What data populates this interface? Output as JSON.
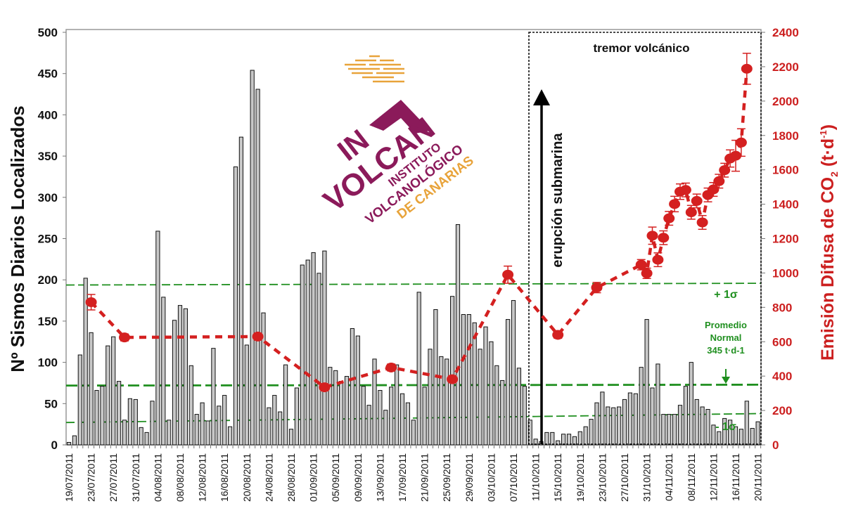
{
  "chart_data": {
    "type": "bar+line",
    "x_start_date": "19/07/2011",
    "x_tick_labels": [
      "19/07/2011",
      "23/07/2011",
      "27/07/2011",
      "31/07/2011",
      "04/08/2011",
      "08/08/2011",
      "12/08/2011",
      "16/08/2011",
      "20/08/2011",
      "24/08/2011",
      "28/08/2011",
      "01/09/2011",
      "05/09/2011",
      "09/09/2011",
      "13/09/2011",
      "17/09/2011",
      "21/09/2011",
      "25/09/2011",
      "29/09/2011",
      "03/10/2011",
      "07/10/2011",
      "11/10/2011",
      "15/10/2011",
      "19/10/2011",
      "23/10/2011",
      "27/10/2011",
      "31/10/2011",
      "04/11/2011",
      "08/11/2011",
      "12/11/2011",
      "16/11/2011",
      "20/11/2011"
    ],
    "ylabel": "Nº Sismos Diarios Localizados",
    "ylim": [
      0,
      500
    ],
    "y_ticks": [
      "0",
      "50",
      "100",
      "150",
      "200",
      "250",
      "300",
      "350",
      "400",
      "450",
      "500"
    ],
    "y2label": {
      "main": "Emisión Difusa de CO",
      "sub": "2",
      "unit_open": " (t·d",
      "sup": "-1",
      "unit_close": ")"
    },
    "y2lim": [
      0,
      2400
    ],
    "y2_ticks": [
      "0",
      "200",
      "400",
      "600",
      "800",
      "1000",
      "1200",
      "1400",
      "1600",
      "1800",
      "2000",
      "2200",
      "2400"
    ],
    "bar_series": {
      "name": "Sismos diarios localizados",
      "values": [
        3,
        11,
        109,
        202,
        136,
        66,
        71,
        120,
        131,
        77,
        30,
        56,
        55,
        21,
        15,
        53,
        259,
        179,
        30,
        151,
        169,
        165,
        96,
        37,
        51,
        29,
        117,
        47,
        60,
        22,
        337,
        373,
        121,
        454,
        431,
        160,
        45,
        60,
        40,
        97,
        19,
        69,
        218,
        224,
        233,
        208,
        235,
        94,
        90,
        77,
        83,
        141,
        132,
        71,
        48,
        104,
        66,
        42,
        70,
        97,
        62,
        51,
        30,
        185,
        70,
        116,
        164,
        107,
        104,
        180,
        267,
        158,
        158,
        148,
        116,
        143,
        125,
        96,
        78,
        152,
        175,
        93,
        71,
        30,
        7,
        4,
        15,
        15,
        5,
        13,
        13,
        10,
        16,
        22,
        31,
        51,
        64,
        46,
        45,
        46,
        55,
        63,
        62,
        94,
        152,
        69,
        98,
        37,
        37,
        37,
        48,
        71,
        100,
        55,
        46,
        43,
        24,
        16,
        32,
        30,
        22,
        19,
        53,
        20,
        28
      ]
    },
    "co2_series": {
      "name": "Emisión difusa de CO2 (t·d-1)",
      "points": [
        {
          "date": "23/07/2011",
          "value": 830,
          "err": 45
        },
        {
          "date": "29/07/2011",
          "value": 625,
          "err": 20
        },
        {
          "date": "22/08/2011",
          "value": 630,
          "err": 20
        },
        {
          "date": "03/09/2011",
          "value": 335,
          "err": 20
        },
        {
          "date": "15/09/2011",
          "value": 450,
          "err": 20
        },
        {
          "date": "26/09/2011",
          "value": 382,
          "err": 20
        },
        {
          "date": "06/10/2011",
          "value": 990,
          "err": 50
        },
        {
          "date": "15/10/2011",
          "value": 640,
          "err": 20
        },
        {
          "date": "22/10/2011",
          "value": 915,
          "err": 30
        },
        {
          "date": "30/10/2011",
          "value": 1048,
          "err": 30
        },
        {
          "date": "31/10/2011",
          "value": 998,
          "err": 30
        },
        {
          "date": "01/11/2011",
          "value": 1217,
          "err": 50
        },
        {
          "date": "02/11/2011",
          "value": 1077,
          "err": 40
        },
        {
          "date": "03/11/2011",
          "value": 1205,
          "err": 40
        },
        {
          "date": "04/11/2011",
          "value": 1318,
          "err": 40
        },
        {
          "date": "05/11/2011",
          "value": 1401,
          "err": 45
        },
        {
          "date": "06/11/2011",
          "value": 1473,
          "err": 45
        },
        {
          "date": "07/11/2011",
          "value": 1483,
          "err": 40
        },
        {
          "date": "08/11/2011",
          "value": 1353,
          "err": 40
        },
        {
          "date": "09/11/2011",
          "value": 1419,
          "err": 40
        },
        {
          "date": "10/11/2011",
          "value": 1294,
          "err": 40
        },
        {
          "date": "11/11/2011",
          "value": 1454,
          "err": 40
        },
        {
          "date": "12/11/2011",
          "value": 1486,
          "err": 40
        },
        {
          "date": "13/11/2011",
          "value": 1534,
          "err": 40
        },
        {
          "date": "14/11/2011",
          "value": 1598,
          "err": 40
        },
        {
          "date": "15/11/2011",
          "value": 1666,
          "err": 50
        },
        {
          "date": "16/11/2011",
          "value": 1682,
          "err": 90
        },
        {
          "date": "17/11/2011",
          "value": 1759,
          "err": 80
        },
        {
          "date": "18/11/2011",
          "value": 2188,
          "err": 90
        }
      ]
    },
    "reference_lines": [
      {
        "name": "plus-1-sigma",
        "label": "+ 1σ",
        "value_start": 930,
        "value_end": 940
      },
      {
        "name": "mean",
        "label": "Promedio Normal 345 t·d-1",
        "value_start": 345,
        "value_end": 350
      },
      {
        "name": "minus-1-sigma",
        "label": "- 1σ",
        "value_start": 130,
        "value_end": 182
      }
    ],
    "annotations": {
      "tremor": "tremor volcánico",
      "tremor_start_date": "10/10/2011",
      "eruption": "erupción submarina",
      "eruption_date": "12/10/2011",
      "plus_sigma": "+ 1σ",
      "minus_sigma": "- 1σ",
      "mean_line1": "Promedio",
      "mean_line2": "Normal",
      "mean_line3": "345 t·d",
      "mean_sup": "-1"
    },
    "colors": {
      "bars": "#c8c8c8",
      "co2": "#d42020",
      "reference": "#1f8f1f",
      "axis_right": "#cc1f1f"
    }
  },
  "logo": {
    "main_1": "IN",
    "main_2": "VOLCAN",
    "line1": "INSTITUTO",
    "line2": "VOLCANOLÓGICO",
    "line3": "DE CANARIAS"
  }
}
